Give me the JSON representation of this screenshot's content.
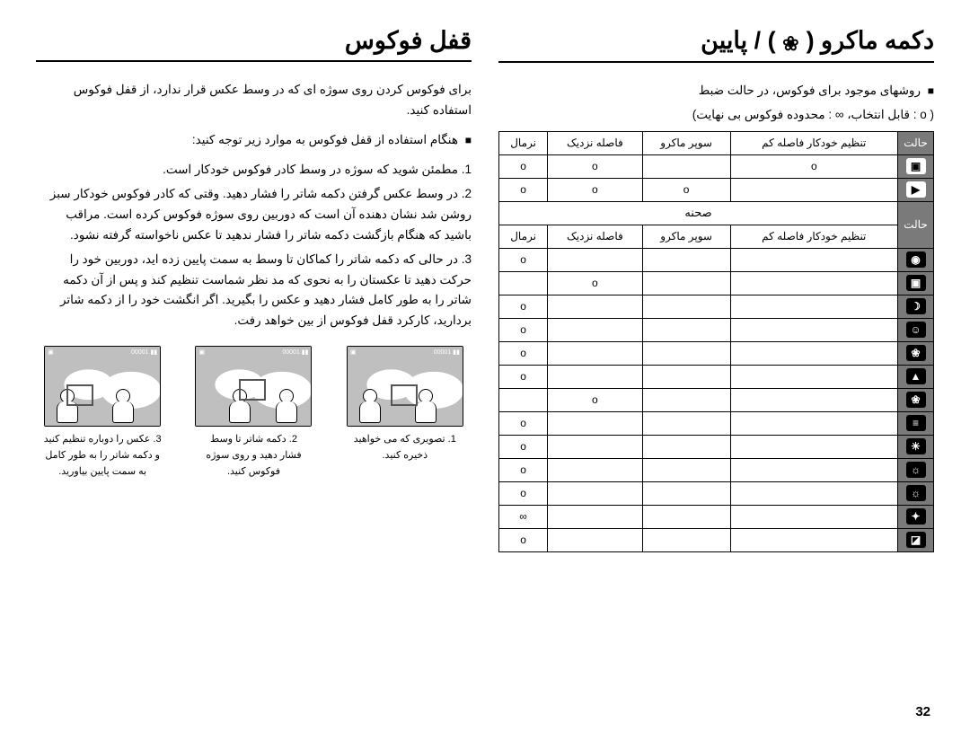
{
  "page_number": "32",
  "right_col": {
    "heading_prefix": "دکمه ماکرو (",
    "heading_suffix": ") / پایین",
    "bullet": "روشهای موجود برای فوکوس، در حالت ضبط",
    "legend": "( o : قابل انتخاب، ∞ : محدوده فوکوس بی نهایت)",
    "table1": {
      "headers": {
        "mode": "حالت",
        "auto_close": "تنظیم خودکار فاصله کم",
        "super_macro": "سوپر ماکرو",
        "close": "فاصله نزدیک",
        "normal": "نرمال"
      },
      "rows": [
        {
          "mode_bg": "light",
          "icon": "▣",
          "c": [
            "o",
            "",
            "o",
            "o"
          ]
        },
        {
          "mode_bg": "light",
          "icon": "▶",
          "c": [
            "",
            "o",
            "o",
            "o"
          ]
        }
      ]
    },
    "scene_span": "صحنه",
    "table2": {
      "headers": {
        "mode": "حالت",
        "auto_close": "تنظیم خودکار فاصله کم",
        "super_macro": "سوپر ماکرو",
        "close": "فاصله نزدیک",
        "normal": "نرمال"
      },
      "rows": [
        {
          "icon": "◉",
          "c": [
            "",
            "",
            "",
            "o"
          ]
        },
        {
          "icon": "▣",
          "c": [
            "",
            "",
            "o",
            ""
          ]
        },
        {
          "icon": "☽",
          "c": [
            "",
            "",
            "",
            "o"
          ]
        },
        {
          "icon": "☺",
          "c": [
            "",
            "",
            "",
            "o"
          ]
        },
        {
          "icon": "❀",
          "c": [
            "",
            "",
            "",
            "o"
          ]
        },
        {
          "icon": "▲",
          "c": [
            "",
            "",
            "",
            "o"
          ]
        },
        {
          "icon": "❀",
          "c": [
            "",
            "",
            "o",
            ""
          ]
        },
        {
          "icon": "≡",
          "c": [
            "",
            "",
            "",
            "o"
          ]
        },
        {
          "icon": "☀",
          "c": [
            "",
            "",
            "",
            "o"
          ]
        },
        {
          "icon": "☼",
          "c": [
            "",
            "",
            "",
            "o"
          ]
        },
        {
          "icon": "☼",
          "c": [
            "",
            "",
            "",
            "o"
          ]
        },
        {
          "icon": "✦",
          "c": [
            "",
            "",
            "",
            "∞"
          ]
        },
        {
          "icon": "◪",
          "c": [
            "",
            "",
            "",
            "o"
          ]
        }
      ]
    }
  },
  "left_col": {
    "heading": "قفل فوکوس",
    "intro": "برای فوکوس کردن روی سوژه ای که در وسط عکس قرار ندارد، از قفل فوکوس استفاده کنید.",
    "sub_bullet": "هنگام استفاده از قفل فوکوس به موارد زیر توجه کنید:",
    "steps": [
      "1. مطمئن شوید که سوژه در وسط کادر فوکوس خودکار است.",
      "2. در وسط عکس گرفتن دکمه شاتر را فشار دهید. وقتی که کادر فوکوس خودکار سبز روشن شد نشان دهنده آن است که دوربین روی سوژه فوکوس کرده است. مراقب باشید که هنگام بازگشت دکمه شاتر را فشار ندهید تا عکس ناخواسته گرفته نشود.",
      "3. در حالی که دکمه شاتر را کماکان تا وسط به سمت پایین زده اید، دوربین خود را حرکت دهید تا عکستان را به نحوی که مد نظر شماست تنظیم کند و پس از آن دکمه شاتر را به طور کامل فشار دهید و عکس را بگیرید. اگر انگشت خود را از دکمه شاتر بردارید، کارکرد قفل فوکوس از بین خواهد رفت."
    ],
    "thumbs": [
      {
        "cap_line1": "1. تصویری که می خواهید",
        "cap_line2": "ذخیره کنید."
      },
      {
        "cap_line1": "2. دکمه شاتر تا وسط",
        "cap_line2": "فشار دهید و روی سوژه",
        "cap_line3": "فوکوس کنید."
      },
      {
        "cap_line1": "3. عکس را دوباره تنظیم کنید",
        "cap_line2": "و دکمه شاتر را به طور کامل",
        "cap_line3": "به سمت پایین بیاورید."
      }
    ]
  }
}
